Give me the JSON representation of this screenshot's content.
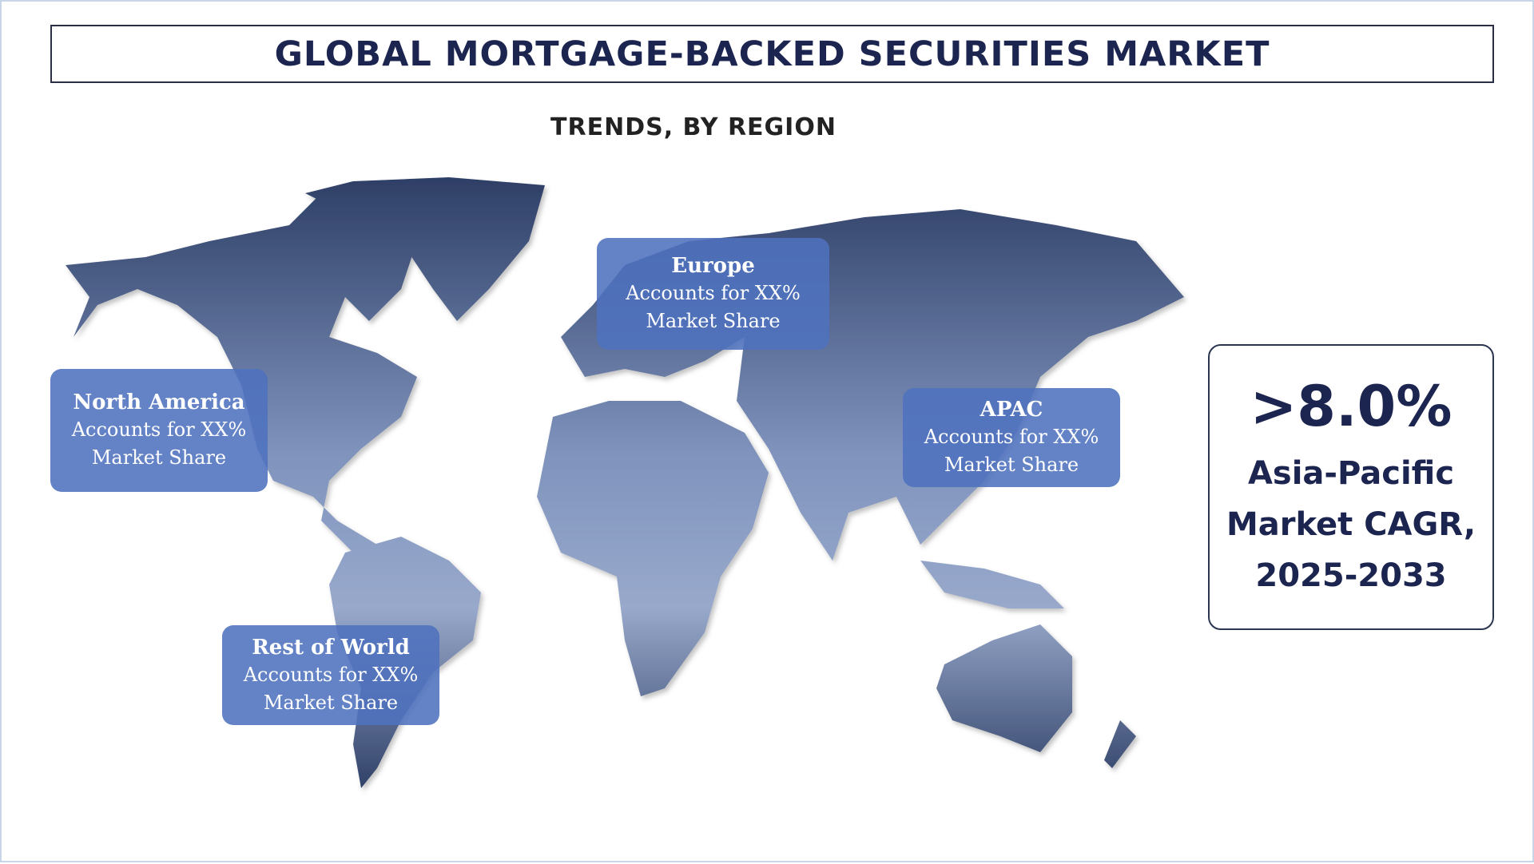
{
  "title": "GLOBAL MORTGAGE-BACKED SECURITIES MARKET",
  "subtitle": "TRENDS, BY REGION",
  "colors": {
    "title": "#1c2550",
    "region_box": "#4e72be",
    "map_top": "#2e3f66",
    "map_bottom": "#a6b6d4"
  },
  "regions": [
    {
      "name": "North America",
      "line1": "Accounts for XX%",
      "line2": "Market Share"
    },
    {
      "name": "Europe",
      "line1": "Accounts for XX%",
      "line2": "Market Share"
    },
    {
      "name": "APAC",
      "line1": "Accounts for XX%",
      "line2": "Market Share"
    },
    {
      "name": "Rest of World",
      "line1": "Accounts for XX%",
      "line2": "Market Share"
    }
  ],
  "cagr": {
    "value": ">8.0%",
    "line1": "Asia-Pacific",
    "line2": "Market CAGR,",
    "line3": "2025-2033"
  }
}
